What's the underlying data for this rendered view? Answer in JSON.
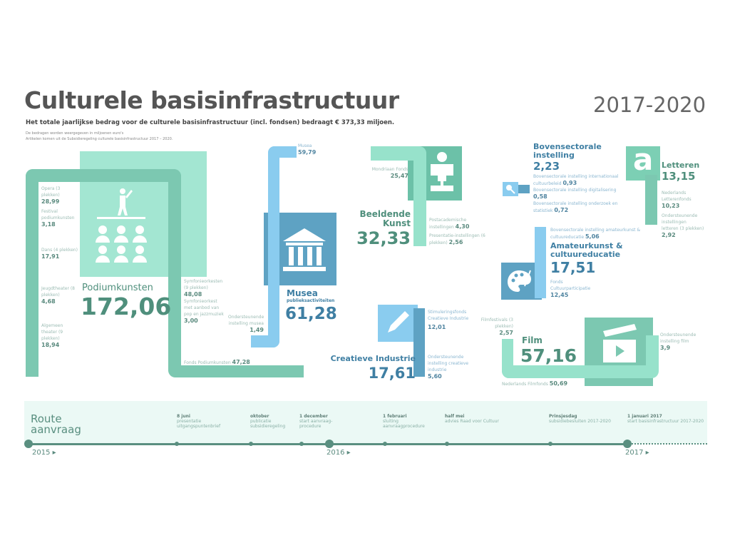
{
  "header": {
    "title": "Culturele basisinfrastructuur",
    "period": "2017-2020",
    "subtitle": "Het totale jaarlijkse bedrag voor de culturele basisinfrastructuur (incl. fondsen) bedraagt € 373,33 miljoen.",
    "note1": "De bedragen worden weergegeven in miljoenen euro's",
    "note2": "Artikelen komen uit de Subsidieregeling culturele basisinfrastructuur 2017 – 2020."
  },
  "podium": {
    "title": "Podiumkunsten",
    "total": "172,06",
    "items": [
      {
        "label": "Opera (3 plekken)",
        "value": "28,99"
      },
      {
        "label": "Festival podiumkunsten",
        "value": "3,18"
      },
      {
        "label": "Dans (4 plekken)",
        "value": "17,91"
      },
      {
        "label": "Jeugdtheater (8 plekken)",
        "value": "4,68"
      },
      {
        "label": "Algemeen theater (9 plekken)",
        "value": "18,94"
      },
      {
        "label": "Symfonieorkesten (9 plekken)",
        "value": "48,08"
      },
      {
        "label": "Symfonieorkest met aanbod van pop en jazzmuziek",
        "value": "3,00"
      },
      {
        "label": "Fonds Podiumkunsten",
        "value": "47,28"
      }
    ]
  },
  "musea": {
    "title": "Musea",
    "subtitle": "publieksactiviteiten",
    "total": "61,28",
    "items": [
      {
        "label": "Musea",
        "value": "59,79"
      },
      {
        "label": "Ondersteunende instelling musea",
        "value": "1,49"
      }
    ]
  },
  "beeldend": {
    "title1": "Beeldende",
    "title2": "Kunst",
    "total": "32,33",
    "items": [
      {
        "label": "Mondriaan Fonds",
        "value": "25,47"
      },
      {
        "label": "Postacademische instellingen",
        "value": "4,30"
      },
      {
        "label": "Presentatie-instellingen (6 plekken)",
        "value": "2,56"
      }
    ]
  },
  "creatief": {
    "title": "Creatieve Industrie",
    "total": "17,61",
    "items": [
      {
        "label": "Stimuleringsfonds Creatieve Industrie",
        "value": "12,01"
      },
      {
        "label": "Ondersteunende instelling creatieve industrie",
        "value": "5,60"
      }
    ]
  },
  "boven": {
    "title1": "Bovensectorale",
    "title2": "instelling",
    "total": "2,23",
    "items": [
      {
        "label": "Bovensectorale instelling internationaal cultuurbeleid",
        "value": "0,93"
      },
      {
        "label": "Bovensectorale instelling digitalisering",
        "value": "0,58"
      },
      {
        "label": "Bovensectorale instelling onderzoek en statistiek",
        "value": "0,72"
      }
    ]
  },
  "letteren": {
    "title": "Letteren",
    "total": "13,15",
    "items": [
      {
        "label": "Nederlands Letterenfonds",
        "value": "10,23"
      },
      {
        "label": "Ondersteunende instellingen letteren (3 plekken)",
        "value": "2,92"
      }
    ]
  },
  "amateur": {
    "title1": "Amateurkunst &",
    "title2": "cultuureducatie",
    "total": "17,51",
    "items": [
      {
        "label": "Bovensectorale instelling amateurkunst & cultuureducatie",
        "value": "5,06"
      },
      {
        "label": "Fonds Cultuurparticipatie",
        "value": "12,45"
      }
    ]
  },
  "film": {
    "title": "Film",
    "total": "57,16",
    "items": [
      {
        "label": "Filmfestivals (3 plekken)",
        "value": "2,57"
      },
      {
        "label": "Ondersteunende instelling film",
        "value": "3,9"
      },
      {
        "label": "Nederlands Filmfonds",
        "value": "50,69"
      }
    ]
  },
  "timeline": {
    "title1": "Route",
    "title2": "aanvraag",
    "years": [
      "2015",
      "2016",
      "2017"
    ],
    "events": [
      {
        "date": "8 juni",
        "text": "presentatie uitgangspuntenbrief"
      },
      {
        "date": "oktober",
        "text": "publicatie subsidieregeling"
      },
      {
        "date": "1 december",
        "text": "start aanvraag-procedure"
      },
      {
        "date": "1 februari",
        "text": "sluiting aanvraagprocedure"
      },
      {
        "date": "half mei",
        "text": "advies Raad voor Cultuur"
      },
      {
        "date": "Prinsjesdag",
        "text": "subsidiebesluiten 2017-2020"
      },
      {
        "date": "1 januari 2017",
        "text": "start basisinfrastructuur 2017-2020"
      }
    ]
  },
  "colors": {
    "mint": "#97e2cb",
    "teal": "#7cc8b1",
    "lightblue": "#8accef",
    "steelblue": "#5ea2c3",
    "darkteal": "#4f8f7c",
    "darkblue": "#3f7fa3"
  }
}
